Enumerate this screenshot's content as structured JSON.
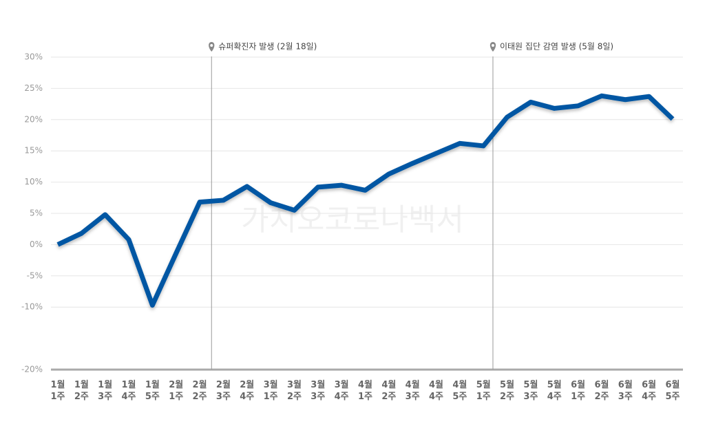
{
  "chart_data": {
    "type": "line",
    "watermark": "가치오코로나백서",
    "categories": [
      "1월 1주",
      "1월 2주",
      "1월 3주",
      "1월 4주",
      "1월 5주",
      "2월 1주",
      "2월 2주",
      "2월 3주",
      "2월 4주",
      "3월 1주",
      "3월 2주",
      "3월 3주",
      "3월 4주",
      "4월 1주",
      "4월 2주",
      "4월 3주",
      "4월 4주",
      "4월 5주",
      "5월 1주",
      "5월 2주",
      "5월 3주",
      "5월 4주",
      "6월 1주",
      "6월 2주",
      "6월 3주",
      "6월 4주",
      "6월 5주"
    ],
    "series": [
      {
        "color": "#0057a3",
        "values": [
          0,
          1.8,
          4.8,
          0.8,
          -9.7,
          -1.4,
          6.8,
          7.1,
          9.3,
          6.7,
          5.5,
          9.2,
          9.5,
          8.7,
          11.3,
          13.0,
          14.6,
          16.2,
          15.8,
          20.4,
          22.8,
          21.8,
          22.2,
          23.8,
          23.2,
          23.7,
          20.1
        ]
      }
    ],
    "ylim": [
      -20,
      30
    ],
    "yticks": [
      {
        "value": 30,
        "label": "30%"
      },
      {
        "value": 25,
        "label": "25%"
      },
      {
        "value": 20,
        "label": "20%"
      },
      {
        "value": 15,
        "label": "15%"
      },
      {
        "value": 10,
        "label": "10%"
      },
      {
        "value": 5,
        "label": "5%"
      },
      {
        "value": 0,
        "label": "0%"
      },
      {
        "value": -5,
        "label": "-5%"
      },
      {
        "value": -10,
        "label": "-10%"
      },
      {
        "value": -20,
        "label": "-20%"
      }
    ],
    "grid": true,
    "annotations": [
      {
        "text": "슈퍼확진자 발생 (2월 18일)",
        "x": 6.5
      },
      {
        "text": "이태원 집단 감염 발생 (5월 8일)",
        "x": 18.4
      }
    ]
  }
}
